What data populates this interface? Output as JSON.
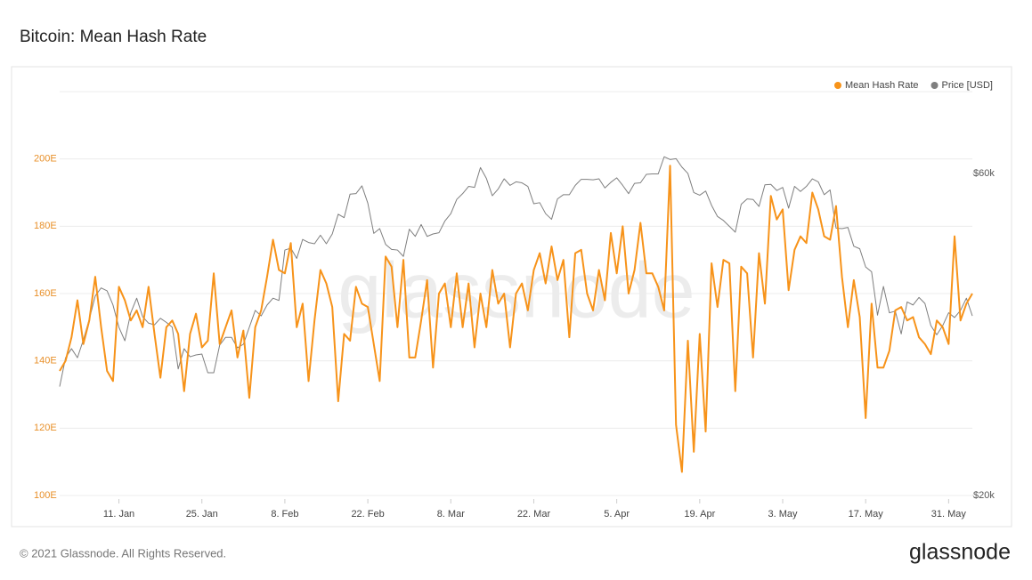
{
  "chart_data": {
    "type": "line",
    "title": "Bitcoin: Mean Hash Rate",
    "watermark": "glassnode",
    "footer": "© 2021 Glassnode. All Rights Reserved.",
    "brand": "glassnode",
    "legend": "top-right",
    "grid": true,
    "y2scale": "log",
    "ylim": [
      100,
      220
    ],
    "yticks": [
      {
        "value": 100,
        "label": "100E"
      },
      {
        "value": 120,
        "label": "120E"
      },
      {
        "value": 140,
        "label": "140E"
      },
      {
        "value": 160,
        "label": "160E"
      },
      {
        "value": 180,
        "label": "180E"
      },
      {
        "value": 200,
        "label": "200E"
      }
    ],
    "y2lim": [
      20000,
      79300
    ],
    "y2ticks": [
      {
        "value": 20000,
        "label": "$20k"
      },
      {
        "value": 60000,
        "label": "$60k"
      }
    ],
    "x": [
      "1. Jan",
      "2. Jan",
      "3. Jan",
      "4. Jan",
      "5. Jan",
      "6. Jan",
      "7. Jan",
      "8. Jan",
      "9. Jan",
      "10. Jan",
      "11. Jan",
      "12. Jan",
      "13. Jan",
      "14. Jan",
      "15. Jan",
      "16. Jan",
      "17. Jan",
      "18. Jan",
      "19. Jan",
      "20. Jan",
      "21. Jan",
      "22. Jan",
      "23. Jan",
      "24. Jan",
      "25. Jan",
      "26. Jan",
      "27. Jan",
      "28. Jan",
      "29. Jan",
      "30. Jan",
      "31. Jan",
      "1. Feb",
      "2. Feb",
      "3. Feb",
      "4. Feb",
      "5. Feb",
      "6. Feb",
      "7. Feb",
      "8. Feb",
      "9. Feb",
      "10. Feb",
      "11. Feb",
      "12. Feb",
      "13. Feb",
      "14. Feb",
      "15. Feb",
      "16. Feb",
      "17. Feb",
      "18. Feb",
      "19. Feb",
      "20. Feb",
      "21. Feb",
      "22. Feb",
      "23. Feb",
      "24. Feb",
      "25. Feb",
      "26. Feb",
      "27. Feb",
      "28. Feb",
      "1. Mar",
      "2. Mar",
      "3. Mar",
      "4. Mar",
      "5. Mar",
      "6. Mar",
      "7. Mar",
      "8. Mar",
      "9. Mar",
      "10. Mar",
      "11. Mar",
      "12. Mar",
      "13. Mar",
      "14. Mar",
      "15. Mar",
      "16. Mar",
      "17. Mar",
      "18. Mar",
      "19. Mar",
      "20. Mar",
      "21. Mar",
      "22. Mar",
      "23. Mar",
      "24. Mar",
      "25. Mar",
      "26. Mar",
      "27. Mar",
      "28. Mar",
      "29. Mar",
      "30. Mar",
      "31. Mar",
      "1. Apr",
      "2. Apr",
      "3. Apr",
      "4. Apr",
      "5. Apr",
      "6. Apr",
      "7. Apr",
      "8. Apr",
      "9. Apr",
      "10. Apr",
      "11. Apr",
      "12. Apr",
      "13. Apr",
      "14. Apr",
      "15. Apr",
      "16. Apr",
      "17. Apr",
      "18. Apr",
      "19. Apr",
      "20. Apr",
      "21. Apr",
      "22. Apr",
      "23. Apr",
      "24. Apr",
      "25. Apr",
      "26. Apr",
      "27. Apr",
      "28. Apr",
      "29. Apr",
      "30. Apr",
      "1. May",
      "2. May",
      "3. May",
      "4. May",
      "5. May",
      "6. May",
      "7. May",
      "8. May",
      "9. May",
      "10. May",
      "11. May",
      "12. May",
      "13. May",
      "14. May",
      "15. May",
      "16. May",
      "17. May",
      "18. May",
      "19. May",
      "20. May",
      "21. May",
      "22. May",
      "23. May",
      "24. May",
      "25. May",
      "26. May",
      "27. May",
      "28. May",
      "29. May",
      "30. May",
      "31. May",
      "1. Jun",
      "2. Jun",
      "3. Jun",
      "4. Jun"
    ],
    "xticks": [
      "11. Jan",
      "25. Jan",
      "8. Feb",
      "22. Feb",
      "8. Mar",
      "22. Mar",
      "5. Apr",
      "19. Apr",
      "3. May",
      "17. May",
      "31. May"
    ],
    "series": [
      {
        "name": "Mean Hash Rate",
        "color": "#f7931a",
        "values": [
          137,
          140,
          147,
          158,
          145,
          152,
          165,
          150,
          137,
          134,
          162,
          158,
          152,
          155,
          150,
          162,
          148,
          135,
          150,
          152,
          148,
          131,
          148,
          154,
          144,
          146,
          166,
          145,
          150,
          155,
          141,
          149,
          129,
          150,
          155,
          165,
          176,
          167,
          166,
          175,
          150,
          157,
          134,
          152,
          167,
          163,
          156,
          128,
          148,
          146,
          162,
          157,
          156,
          145,
          134,
          171,
          168,
          150,
          170,
          141,
          141,
          152,
          164,
          138,
          160,
          163,
          150,
          166,
          150,
          163,
          144,
          160,
          150,
          167,
          157,
          160,
          144,
          160,
          163,
          155,
          167,
          172,
          163,
          174,
          164,
          170,
          147,
          172,
          173,
          160,
          155,
          167,
          158,
          178,
          166,
          180,
          160,
          167,
          181,
          166,
          166,
          162,
          155,
          198,
          121,
          107,
          146,
          113,
          148,
          119,
          169,
          156,
          170,
          169,
          131,
          168,
          166,
          141,
          172,
          157,
          189,
          182,
          185,
          161,
          173,
          177,
          175,
          190,
          185,
          177,
          176,
          186,
          165,
          150,
          164,
          153,
          123,
          157,
          138,
          138,
          143,
          155,
          156,
          152,
          153,
          147,
          145,
          142,
          152,
          150,
          145,
          177,
          152,
          157,
          160
        ]
      },
      {
        "name": "Price [USD]",
        "color": "#7f7f7f",
        "axis": "y2",
        "values": [
          29000,
          32000,
          33000,
          32000,
          34000,
          36500,
          39500,
          40600,
          40200,
          38300,
          35500,
          33900,
          37300,
          39200,
          36800,
          36000,
          35800,
          36600,
          36100,
          35500,
          30800,
          33000,
          32100,
          32300,
          32400,
          30400,
          30400,
          33400,
          34300,
          34300,
          33100,
          33500,
          35500,
          37600,
          36900,
          38300,
          39200,
          38900,
          46200,
          46500,
          44900,
          47900,
          47400,
          47200,
          48600,
          47200,
          48800,
          52200,
          51600,
          55900,
          56000,
          57500,
          54200,
          48900,
          49700,
          47100,
          46300,
          46200,
          45200,
          49600,
          48400,
          50400,
          48400,
          48800,
          49000,
          51000,
          52300,
          54900,
          56000,
          57400,
          57200,
          61200,
          59000,
          55600,
          56900,
          58900,
          57600,
          58300,
          58100,
          57400,
          54100,
          54300,
          52300,
          51300,
          55000,
          55800,
          55800,
          57600,
          58800,
          58800,
          58700,
          58900,
          57100,
          58200,
          59100,
          57600,
          56000,
          58000,
          58100,
          59800,
          59900,
          59900,
          63500,
          62900,
          63100,
          61300,
          60000,
          56200,
          55700,
          56500,
          53800,
          51800,
          51100,
          50100,
          49100,
          54000,
          55000,
          54900,
          53600,
          57700,
          57800,
          56600,
          57200,
          53300,
          57400,
          56400,
          57400,
          58900,
          58300,
          55800,
          56700,
          49800,
          49700,
          49900,
          46800,
          46400,
          43600,
          42900,
          37000,
          40800,
          37300,
          37500,
          34700,
          38700,
          38300,
          39300,
          38500,
          35700,
          34600,
          35700,
          37300,
          36700,
          37600,
          39200,
          36900
        ]
      }
    ]
  }
}
